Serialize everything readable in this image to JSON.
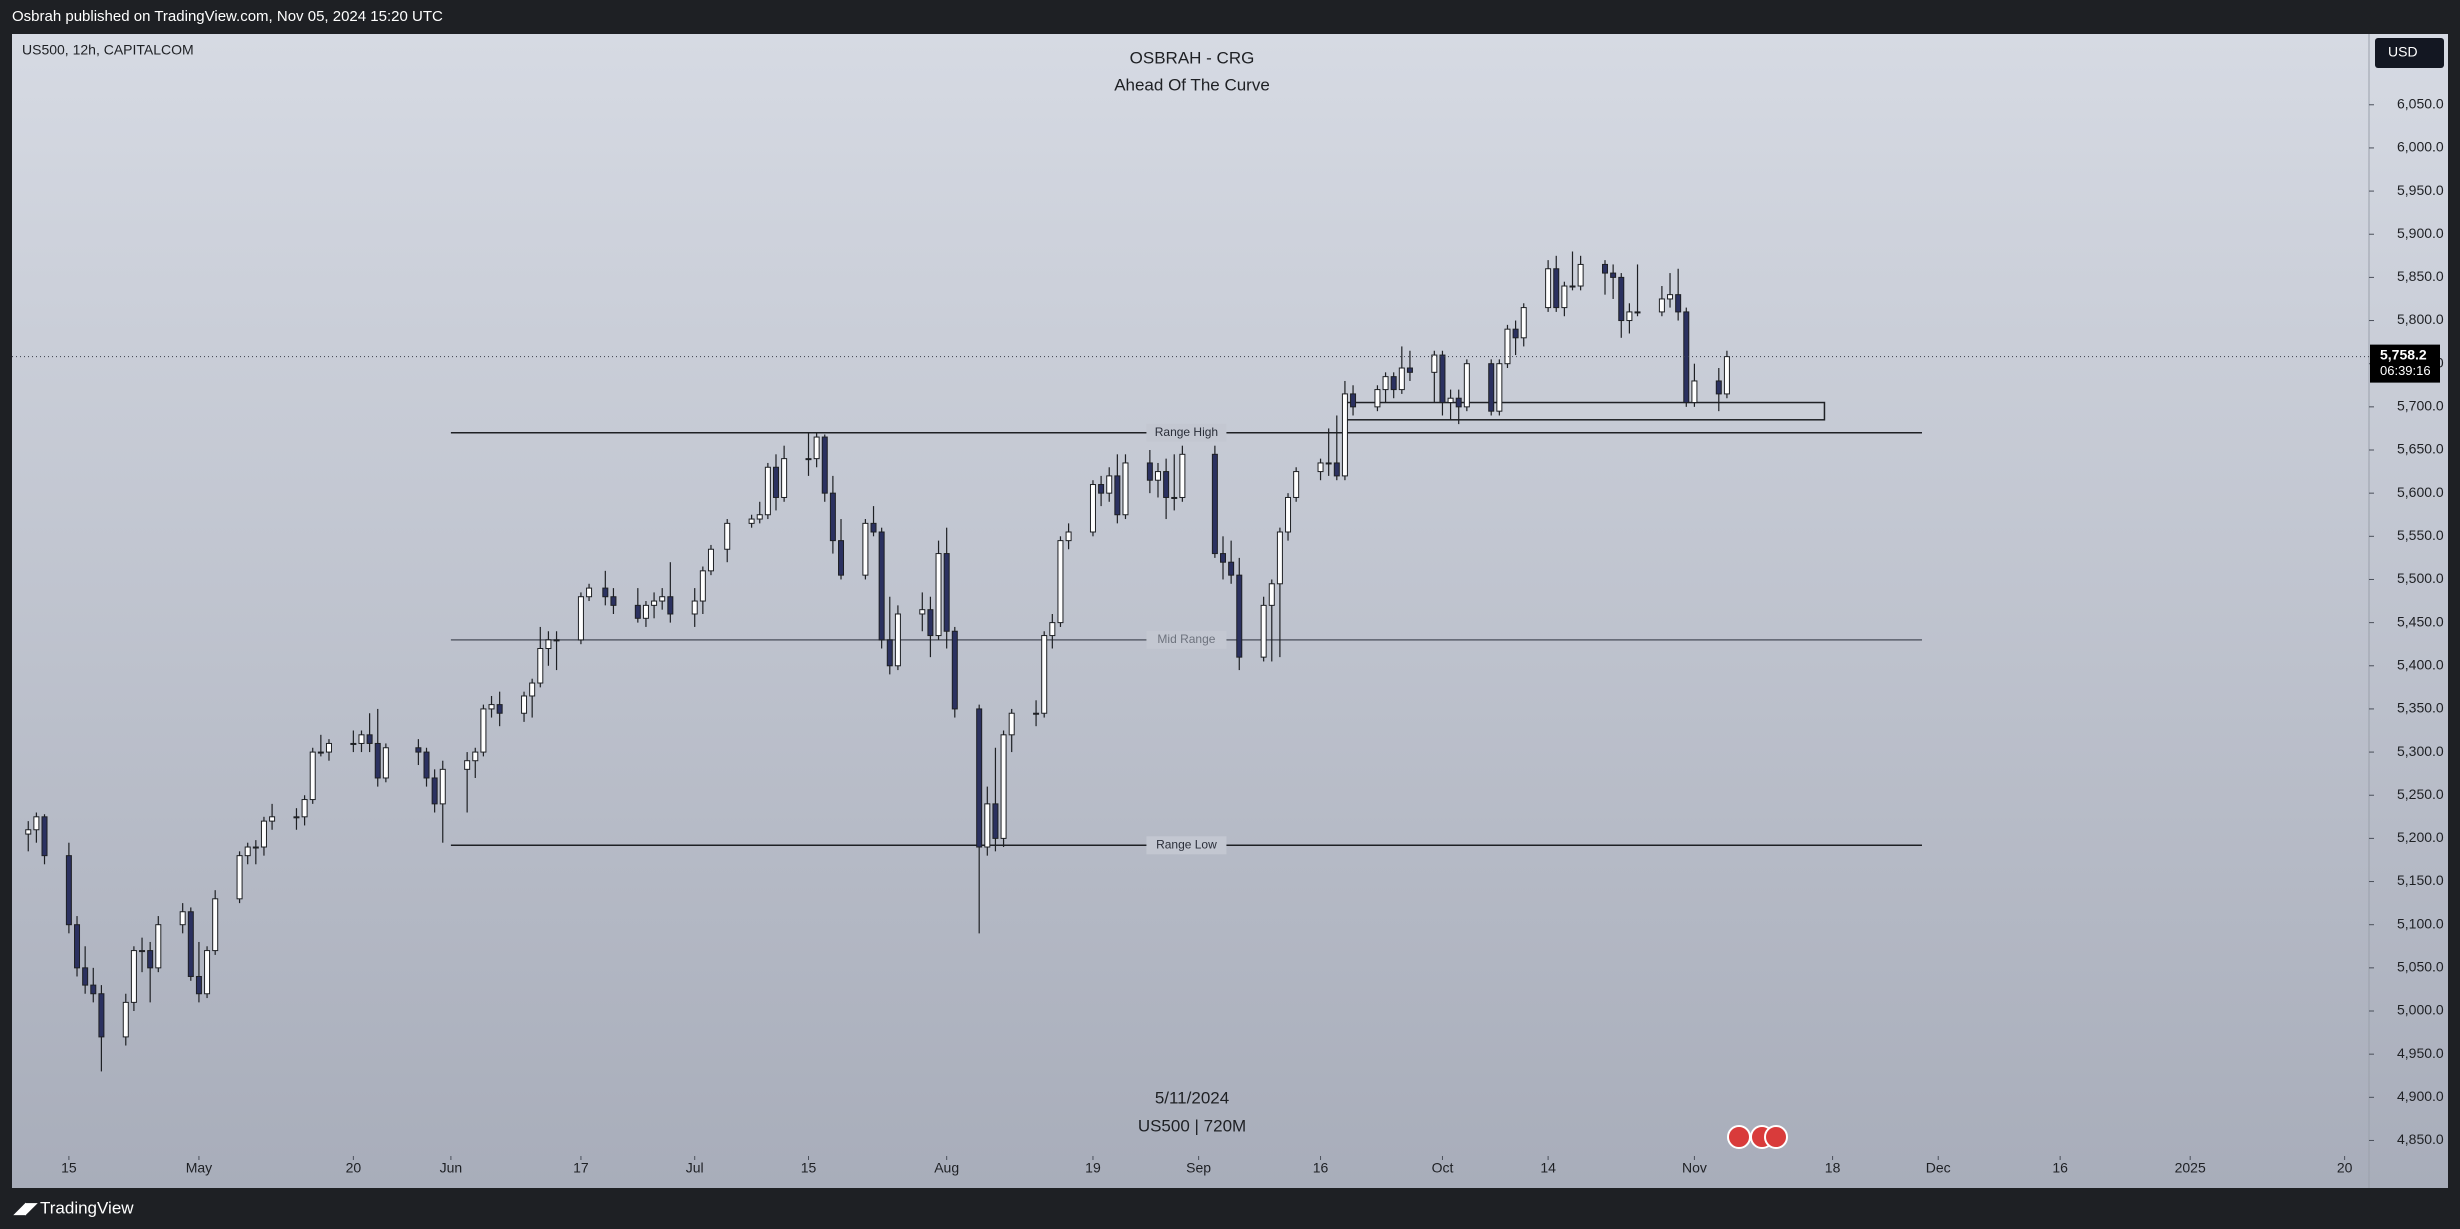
{
  "header": "Osbrah published on TradingView.com, Nov 05, 2024 15:20 UTC",
  "footer_brand": "TradingView",
  "chart_data": {
    "type": "candlestick",
    "symbol_info": "US500, 12h, CAPITALCOM",
    "title": "OSBRAH - CRG",
    "subtitle": "Ahead Of The Curve",
    "currency": "USD",
    "date_label": "5/11/2024",
    "watermark": "US500 | 720M",
    "last_price_label": "5,758.2",
    "countdown": "06:39:16",
    "up_color": "#ffffff",
    "down_color": "#2b3160",
    "x": [
      "2024-04-10",
      "2024-04-11",
      "2024-04-12",
      "2024-04-15",
      "2024-04-16",
      "2024-04-17",
      "2024-04-18",
      "2024-04-19",
      "2024-04-22",
      "2024-04-23",
      "2024-04-24",
      "2024-04-25",
      "2024-04-26",
      "2024-04-29",
      "2024-04-30",
      "2024-05-01",
      "2024-05-02",
      "2024-05-03",
      "2024-05-06",
      "2024-05-07",
      "2024-05-08",
      "2024-05-09",
      "2024-05-10",
      "2024-05-13",
      "2024-05-14",
      "2024-05-15",
      "2024-05-16",
      "2024-05-17",
      "2024-05-20",
      "2024-05-21",
      "2024-05-22",
      "2024-05-23",
      "2024-05-24",
      "2024-05-28",
      "2024-05-29",
      "2024-05-30",
      "2024-05-31",
      "2024-06-03",
      "2024-06-04",
      "2024-06-05",
      "2024-06-06",
      "2024-06-07",
      "2024-06-10",
      "2024-06-11",
      "2024-06-12",
      "2024-06-13",
      "2024-06-14",
      "2024-06-17",
      "2024-06-18",
      "2024-06-20",
      "2024-06-21",
      "2024-06-24",
      "2024-06-25",
      "2024-06-26",
      "2024-06-27",
      "2024-06-28",
      "2024-07-01",
      "2024-07-02",
      "2024-07-03",
      "2024-07-05",
      "2024-07-08",
      "2024-07-09",
      "2024-07-10",
      "2024-07-11",
      "2024-07-12",
      "2024-07-15",
      "2024-07-16",
      "2024-07-17",
      "2024-07-18",
      "2024-07-19",
      "2024-07-22",
      "2024-07-23",
      "2024-07-24",
      "2024-07-25",
      "2024-07-26",
      "2024-07-29",
      "2024-07-30",
      "2024-07-31",
      "2024-08-01",
      "2024-08-02",
      "2024-08-05",
      "2024-08-06",
      "2024-08-07",
      "2024-08-08",
      "2024-08-09",
      "2024-08-12",
      "2024-08-13",
      "2024-08-14",
      "2024-08-15",
      "2024-08-16",
      "2024-08-19",
      "2024-08-20",
      "2024-08-21",
      "2024-08-22",
      "2024-08-23",
      "2024-08-26",
      "2024-08-27",
      "2024-08-28",
      "2024-08-29",
      "2024-08-30",
      "2024-09-03",
      "2024-09-04",
      "2024-09-05",
      "2024-09-06",
      "2024-09-09",
      "2024-09-10",
      "2024-09-11",
      "2024-09-12",
      "2024-09-13",
      "2024-09-16",
      "2024-09-17",
      "2024-09-18",
      "2024-09-19",
      "2024-09-20",
      "2024-09-23",
      "2024-09-24",
      "2024-09-25",
      "2024-09-26",
      "2024-09-27",
      "2024-09-30",
      "2024-10-01",
      "2024-10-02",
      "2024-10-03",
      "2024-10-04",
      "2024-10-07",
      "2024-10-08",
      "2024-10-09",
      "2024-10-10",
      "2024-10-11",
      "2024-10-14",
      "2024-10-15",
      "2024-10-16",
      "2024-10-17",
      "2024-10-18",
      "2024-10-21",
      "2024-10-22",
      "2024-10-23",
      "2024-10-24",
      "2024-10-25",
      "2024-10-28",
      "2024-10-29",
      "2024-10-30",
      "2024-10-31",
      "2024-11-01",
      "2024-11-04",
      "2024-11-05"
    ],
    "open": [
      5205,
      5210,
      5225,
      5180,
      5100,
      5050,
      5030,
      5020,
      4970,
      5010,
      5070,
      5070,
      5050,
      5100,
      5115,
      5040,
      5020,
      5070,
      5130,
      5180,
      5190,
      5190,
      5220,
      5225,
      5225,
      5245,
      5300,
      5300,
      5310,
      5310,
      5320,
      5310,
      5270,
      5305,
      5300,
      5270,
      5240,
      5280,
      5290,
      5300,
      5350,
      5355,
      5345,
      5365,
      5380,
      5420,
      5430,
      5430,
      5480,
      5490,
      5480,
      5470,
      5455,
      5470,
      5475,
      5480,
      5460,
      5475,
      5510,
      5535,
      5565,
      5570,
      5575,
      5630,
      5595,
      5640,
      5640,
      5665,
      5600,
      5545,
      5505,
      5565,
      5555,
      5430,
      5400,
      5460,
      5465,
      5435,
      5530,
      5440,
      5350,
      5190,
      5240,
      5200,
      5320,
      5345,
      5345,
      5435,
      5450,
      5545,
      5555,
      5610,
      5600,
      5620,
      5575,
      5635,
      5615,
      5625,
      5595,
      5595,
      5645,
      5530,
      5520,
      5505,
      5410,
      5470,
      5495,
      5555,
      5595,
      5625,
      5635,
      5635,
      5620,
      5715,
      5700,
      5720,
      5735,
      5720,
      5745,
      5740,
      5760,
      5705,
      5710,
      5700,
      5750,
      5695,
      5750,
      5790,
      5780,
      5815,
      5860,
      5815,
      5840,
      5840,
      5865,
      5855,
      5850,
      5800,
      5810,
      5810,
      5825,
      5830,
      5810,
      5705,
      5730,
      5715
    ],
    "high": [
      5220,
      5230,
      5228,
      5195,
      5110,
      5075,
      5050,
      5030,
      5020,
      5075,
      5085,
      5080,
      5110,
      5125,
      5120,
      5080,
      5075,
      5140,
      5185,
      5195,
      5198,
      5225,
      5240,
      5235,
      5250,
      5305,
      5320,
      5315,
      5325,
      5325,
      5345,
      5350,
      5310,
      5315,
      5305,
      5280,
      5290,
      5300,
      5305,
      5355,
      5365,
      5370,
      5370,
      5385,
      5445,
      5440,
      5440,
      5485,
      5495,
      5510,
      5490,
      5490,
      5475,
      5485,
      5490,
      5520,
      5490,
      5515,
      5540,
      5570,
      5575,
      5590,
      5635,
      5645,
      5655,
      5670,
      5670,
      5668,
      5620,
      5570,
      5570,
      5585,
      5560,
      5480,
      5470,
      5485,
      5480,
      5545,
      5560,
      5445,
      5355,
      5260,
      5305,
      5325,
      5350,
      5360,
      5440,
      5460,
      5550,
      5565,
      5615,
      5620,
      5630,
      5645,
      5645,
      5650,
      5635,
      5640,
      5645,
      5655,
      5655,
      5550,
      5545,
      5525,
      5480,
      5500,
      5560,
      5600,
      5630,
      5640,
      5675,
      5690,
      5730,
      5725,
      5725,
      5740,
      5740,
      5770,
      5765,
      5765,
      5765,
      5720,
      5720,
      5755,
      5755,
      5755,
      5795,
      5800,
      5820,
      5870,
      5875,
      5845,
      5880,
      5875,
      5870,
      5865,
      5855,
      5820,
      5865,
      5840,
      5855,
      5860,
      5815,
      5750,
      5745,
      5765
    ],
    "low": [
      5185,
      5195,
      5170,
      5090,
      5040,
      5020,
      5010,
      4930,
      4960,
      5000,
      5045,
      5010,
      5045,
      5090,
      5035,
      5010,
      5015,
      5065,
      5125,
      5170,
      5170,
      5180,
      5210,
      5210,
      5215,
      5240,
      5295,
      5290,
      5300,
      5300,
      5300,
      5260,
      5265,
      5285,
      5260,
      5230,
      5195,
      5230,
      5270,
      5295,
      5340,
      5330,
      5335,
      5340,
      5375,
      5400,
      5395,
      5425,
      5475,
      5470,
      5460,
      5450,
      5445,
      5455,
      5465,
      5450,
      5445,
      5460,
      5505,
      5520,
      5560,
      5565,
      5570,
      5580,
      5590,
      5620,
      5630,
      5590,
      5530,
      5500,
      5500,
      5550,
      5420,
      5390,
      5395,
      5440,
      5410,
      5430,
      5420,
      5340,
      5090,
      5180,
      5185,
      5190,
      5300,
      5330,
      5340,
      5420,
      5445,
      5535,
      5550,
      5585,
      5590,
      5565,
      5570,
      5600,
      5595,
      5570,
      5580,
      5590,
      5525,
      5500,
      5495,
      5395,
      5405,
      5405,
      5410,
      5545,
      5590,
      5615,
      5620,
      5615,
      5615,
      5690,
      5695,
      5705,
      5710,
      5715,
      5730,
      5705,
      5690,
      5685,
      5680,
      5695,
      5690,
      5690,
      5745,
      5760,
      5770,
      5810,
      5810,
      5805,
      5835,
      5835,
      5830,
      5825,
      5780,
      5785,
      5805,
      5805,
      5815,
      5800,
      5700,
      5700,
      5695,
      5710
    ],
    "close": [
      5210,
      5225,
      5180,
      5100,
      5050,
      5030,
      5020,
      4970,
      5010,
      5070,
      5070,
      5050,
      5100,
      5115,
      5040,
      5020,
      5070,
      5130,
      5180,
      5190,
      5190,
      5220,
      5225,
      5225,
      5245,
      5300,
      5300,
      5310,
      5310,
      5320,
      5310,
      5270,
      5305,
      5300,
      5270,
      5240,
      5280,
      5290,
      5300,
      5350,
      5355,
      5345,
      5365,
      5380,
      5420,
      5430,
      5430,
      5480,
      5490,
      5480,
      5470,
      5455,
      5470,
      5475,
      5480,
      5460,
      5475,
      5510,
      5535,
      5565,
      5570,
      5575,
      5630,
      5595,
      5640,
      5640,
      5665,
      5600,
      5545,
      5505,
      5565,
      5555,
      5430,
      5400,
      5460,
      5465,
      5435,
      5530,
      5440,
      5350,
      5190,
      5240,
      5200,
      5320,
      5345,
      5345,
      5435,
      5450,
      5545,
      5555,
      5610,
      5600,
      5620,
      5575,
      5635,
      5615,
      5625,
      5595,
      5595,
      5645,
      5530,
      5520,
      5505,
      5410,
      5470,
      5495,
      5555,
      5595,
      5625,
      5635,
      5635,
      5620,
      5715,
      5700,
      5720,
      5735,
      5720,
      5745,
      5740,
      5760,
      5705,
      5710,
      5700,
      5750,
      5695,
      5750,
      5790,
      5780,
      5815,
      5860,
      5815,
      5840,
      5840,
      5865,
      5855,
      5850,
      5800,
      5810,
      5810,
      5825,
      5830,
      5810,
      5705,
      5730,
      5715,
      5758.2
    ],
    "xlim": [
      "2024-04-08",
      "2025-01-23"
    ],
    "xticks": [
      {
        "value": "2024-04-15",
        "label": "15"
      },
      {
        "value": "2024-05-01",
        "label": "May"
      },
      {
        "value": "2024-05-20",
        "label": "20"
      },
      {
        "value": "2024-06-01",
        "label": "Jun"
      },
      {
        "value": "2024-06-17",
        "label": "17"
      },
      {
        "value": "2024-07-01",
        "label": "Jul"
      },
      {
        "value": "2024-07-15",
        "label": "15"
      },
      {
        "value": "2024-08-01",
        "label": "Aug"
      },
      {
        "value": "2024-08-19",
        "label": "19"
      },
      {
        "value": "2024-09-01",
        "label": "Sep"
      },
      {
        "value": "2024-09-16",
        "label": "16"
      },
      {
        "value": "2024-10-01",
        "label": "Oct"
      },
      {
        "value": "2024-10-14",
        "label": "14"
      },
      {
        "value": "2024-11-01",
        "label": "Nov"
      },
      {
        "value": "2024-11-18",
        "label": "18"
      },
      {
        "value": "2024-12-01",
        "label": "Dec"
      },
      {
        "value": "2024-12-16",
        "label": "16"
      },
      {
        "value": "2025-01-01",
        "label": "2025"
      },
      {
        "value": "2025-01-20",
        "label": "20"
      }
    ],
    "ylim": [
      4832,
      6132
    ],
    "yticks": [
      {
        "value": 4850,
        "label": "4,850.0"
      },
      {
        "value": 4900,
        "label": "4,900.0"
      },
      {
        "value": 4950,
        "label": "4,950.0"
      },
      {
        "value": 5000,
        "label": "5,000.0"
      },
      {
        "value": 5050,
        "label": "5,050.0"
      },
      {
        "value": 5100,
        "label": "5,100.0"
      },
      {
        "value": 5150,
        "label": "5,150.0"
      },
      {
        "value": 5200,
        "label": "5,200.0"
      },
      {
        "value": 5250,
        "label": "5,250.0"
      },
      {
        "value": 5300,
        "label": "5,300.0"
      },
      {
        "value": 5350,
        "label": "5,350.0"
      },
      {
        "value": 5400,
        "label": "5,400.0"
      },
      {
        "value": 5450,
        "label": "5,450.0"
      },
      {
        "value": 5500,
        "label": "5,500.0"
      },
      {
        "value": 5550,
        "label": "5,550.0"
      },
      {
        "value": 5600,
        "label": "5,600.0"
      },
      {
        "value": 5650,
        "label": "5,650.0"
      },
      {
        "value": 5700,
        "label": "5,700.0"
      },
      {
        "value": 5750,
        "label": "5,750.0"
      },
      {
        "value": 5800,
        "label": "5,800.0"
      },
      {
        "value": 5850,
        "label": "5,850.0"
      },
      {
        "value": 5900,
        "label": "5,900.0"
      },
      {
        "value": 5950,
        "label": "5,950.0"
      },
      {
        "value": 6000,
        "label": "6,000.0"
      },
      {
        "value": 6050,
        "label": "6,050.0"
      }
    ],
    "levels": [
      {
        "label": "Range High",
        "value": 5670,
        "start": "2024-06-01",
        "end": "2024-11-29"
      },
      {
        "label": "Mid Range",
        "value": 5430,
        "start": "2024-06-01",
        "end": "2024-11-29"
      },
      {
        "label": "Range Low",
        "value": 5192,
        "start": "2024-06-01",
        "end": "2024-11-29"
      }
    ],
    "zone": {
      "start": "2024-09-19",
      "end": "2024-11-17",
      "low": 5685,
      "high": 5705
    }
  }
}
